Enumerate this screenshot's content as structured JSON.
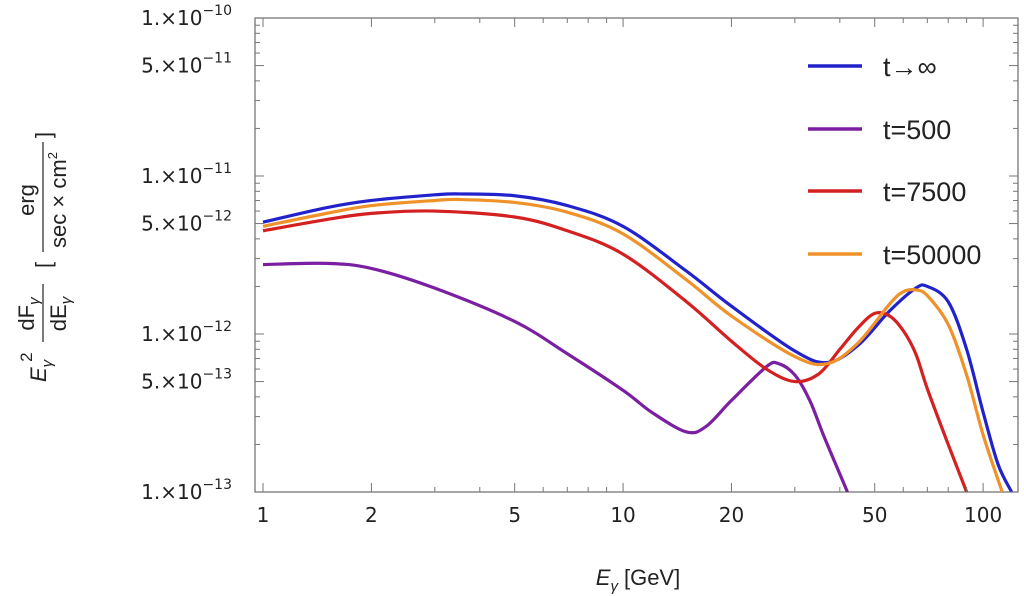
{
  "chart_data": {
    "type": "line",
    "xscale": "log",
    "yscale": "log",
    "xlim": [
      0.95,
      125
    ],
    "ylim": [
      1e-13,
      1e-10
    ],
    "x_ticks": [
      {
        "value": 1,
        "label": "1"
      },
      {
        "value": 2,
        "label": "2"
      },
      {
        "value": 5,
        "label": "5"
      },
      {
        "value": 10,
        "label": "10"
      },
      {
        "value": 20,
        "label": "20"
      },
      {
        "value": 50,
        "label": "50"
      },
      {
        "value": 100,
        "label": "100"
      }
    ],
    "y_ticks": [
      {
        "value": 1e-13,
        "mantissa": "1.×10",
        "exponent": "−13"
      },
      {
        "value": 5e-13,
        "mantissa": "5.×10",
        "exponent": "−13"
      },
      {
        "value": 1e-12,
        "mantissa": "1.×10",
        "exponent": "−12"
      },
      {
        "value": 5e-12,
        "mantissa": "5.×10",
        "exponent": "−12"
      },
      {
        "value": 1e-11,
        "mantissa": "1.×10",
        "exponent": "−11"
      },
      {
        "value": 5e-11,
        "mantissa": "5.×10",
        "exponent": "−11"
      },
      {
        "value": 1e-10,
        "mantissa": "1.×10",
        "exponent": "−10"
      }
    ],
    "xlabel": {
      "symbol": "E",
      "sub": "γ",
      "unit": "[GeV]"
    },
    "ylabel": {
      "prefix": "E",
      "prefix_sub": "γ",
      "prefix_sup": "2",
      "frac_num": "dF",
      "frac_num_sub": "γ",
      "frac_den": "dE",
      "frac_den_sub": "γ",
      "unit_num": "erg",
      "unit_den": "sec × cm",
      "unit_den_sup": "2"
    },
    "grid": false,
    "legend_position": "top-right",
    "series": [
      {
        "name": "t→∞",
        "color": "#2222cc",
        "x": [
          1,
          1.5,
          2,
          3,
          3.5,
          5,
          7,
          10,
          15,
          20,
          30,
          37,
          45,
          55,
          65,
          70,
          80,
          90,
          100,
          110,
          120
        ],
        "y": [
          5.1e-12,
          6.3e-12,
          7e-12,
          7.6e-12,
          7.7e-12,
          7.5e-12,
          6.5e-12,
          4.8e-12,
          2.5e-12,
          1.5e-12,
          7.8e-13,
          6.6e-13,
          8.5e-13,
          1.4e-12,
          1.95e-12,
          2e-12,
          1.6e-12,
          8e-13,
          3.2e-13,
          1.5e-13,
          1e-13
        ]
      },
      {
        "name": "t=500",
        "color": "#7a1fa2",
        "x": [
          1,
          1.5,
          2,
          3,
          5,
          7,
          10,
          12,
          15,
          17,
          20,
          25,
          27,
          30,
          33,
          36,
          40,
          42
        ],
        "y": [
          2.75e-12,
          2.8e-12,
          2.6e-12,
          1.95e-12,
          1.2e-12,
          7.5e-13,
          4.4e-13,
          3.2e-13,
          2.4e-13,
          2.6e-13,
          3.8e-13,
          6.2e-13,
          6.5e-13,
          5.5e-13,
          3.8e-13,
          2.3e-13,
          1.3e-13,
          1e-13
        ]
      },
      {
        "name": "t=7500",
        "color": "#d42020",
        "x": [
          1,
          1.5,
          2,
          3,
          5,
          7,
          10,
          15,
          20,
          25,
          30,
          35,
          40,
          45,
          50,
          55,
          60,
          65,
          70,
          80,
          90
        ],
        "y": [
          4.5e-12,
          5.3e-12,
          5.8e-12,
          6e-12,
          5.5e-12,
          4.5e-12,
          3.2e-12,
          1.6e-12,
          9e-13,
          6e-13,
          5e-13,
          5.6e-13,
          8e-13,
          1.1e-12,
          1.35e-12,
          1.3e-12,
          1.05e-12,
          7.5e-13,
          4.5e-13,
          2e-13,
          1e-13
        ]
      },
      {
        "name": "t=50000",
        "color": "#f0922a",
        "x": [
          1,
          1.5,
          2,
          3,
          3.5,
          5,
          7,
          10,
          15,
          20,
          30,
          37,
          45,
          55,
          60,
          65,
          70,
          80,
          90,
          100,
          113
        ],
        "y": [
          4.8e-12,
          5.8e-12,
          6.5e-12,
          7e-12,
          7.1e-12,
          6.8e-12,
          5.9e-12,
          4.3e-12,
          2.2e-12,
          1.3e-12,
          7.2e-13,
          6.5e-13,
          8.8e-13,
          1.55e-12,
          1.85e-12,
          1.9e-12,
          1.75e-12,
          1.15e-12,
          5.5e-13,
          2.3e-13,
          1e-13
        ]
      }
    ]
  }
}
